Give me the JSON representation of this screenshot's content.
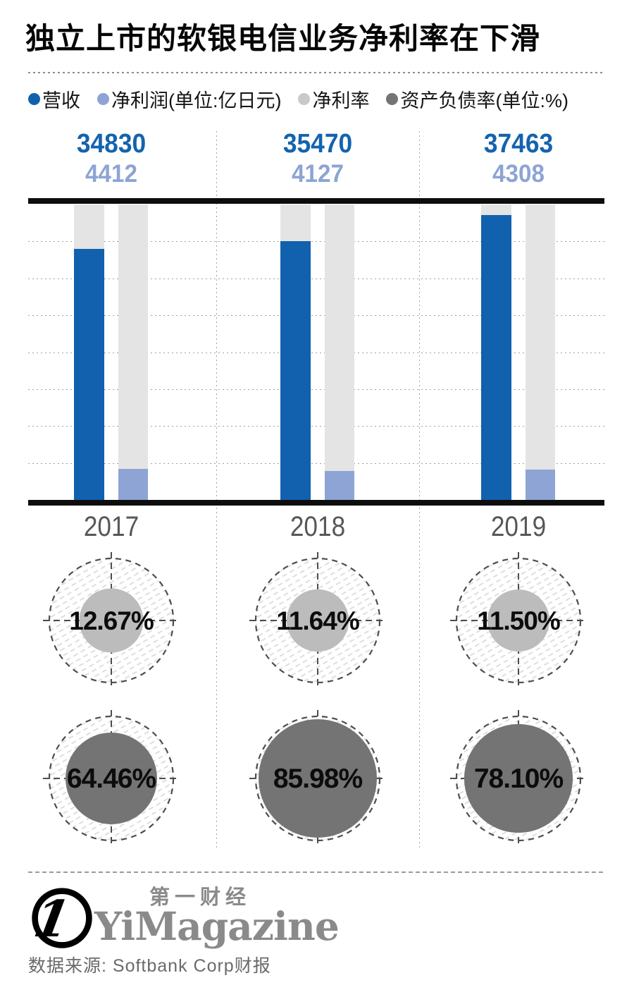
{
  "title": "独立上市的软银电信业务净利率在下滑",
  "legend": [
    {
      "label": "营收",
      "color": "#1161ae"
    },
    {
      "label": "净利润(单位:亿日元)",
      "color": "#8da4d4"
    },
    {
      "label": "净利率",
      "color": "#c9c9c9"
    },
    {
      "label": "资产负债率(单位:%)",
      "color": "#747474"
    }
  ],
  "chart_data": {
    "type": "bar",
    "categories": [
      "2017",
      "2018",
      "2019"
    ],
    "series": [
      {
        "name": "营收",
        "unit": "亿日元",
        "color": "#1161ae",
        "display": "bar",
        "values": [
          34830,
          35470,
          37463
        ]
      },
      {
        "name": "净利润",
        "unit": "亿日元",
        "color": "#8da4d4",
        "display": "bar",
        "values": [
          4412,
          4127,
          4308
        ]
      },
      {
        "name": "净利率",
        "unit": "%",
        "color": "#bcbcbc",
        "display": "circle",
        "values": [
          12.67,
          11.64,
          11.5
        ]
      },
      {
        "name": "资产负债率",
        "unit": "%",
        "color": "#747474",
        "display": "circle",
        "values": [
          64.46,
          85.98,
          78.1
        ]
      }
    ],
    "title": "独立上市的软银电信业务净利率在下滑",
    "xlabel": "",
    "ylabel": "",
    "layout_hints": {
      "legend_position": "top",
      "grid": "dotted-horizontal",
      "grid_divisions": 8,
      "revenue_axis": [
        15300,
        38300
      ],
      "profit_axis": [
        0,
        42000
      ],
      "background_tracks": true
    }
  },
  "footer": {
    "logo_cn": "第一财经",
    "logo_en": "YiMagazine",
    "source": "数据来源: Softbank Corp财报"
  }
}
